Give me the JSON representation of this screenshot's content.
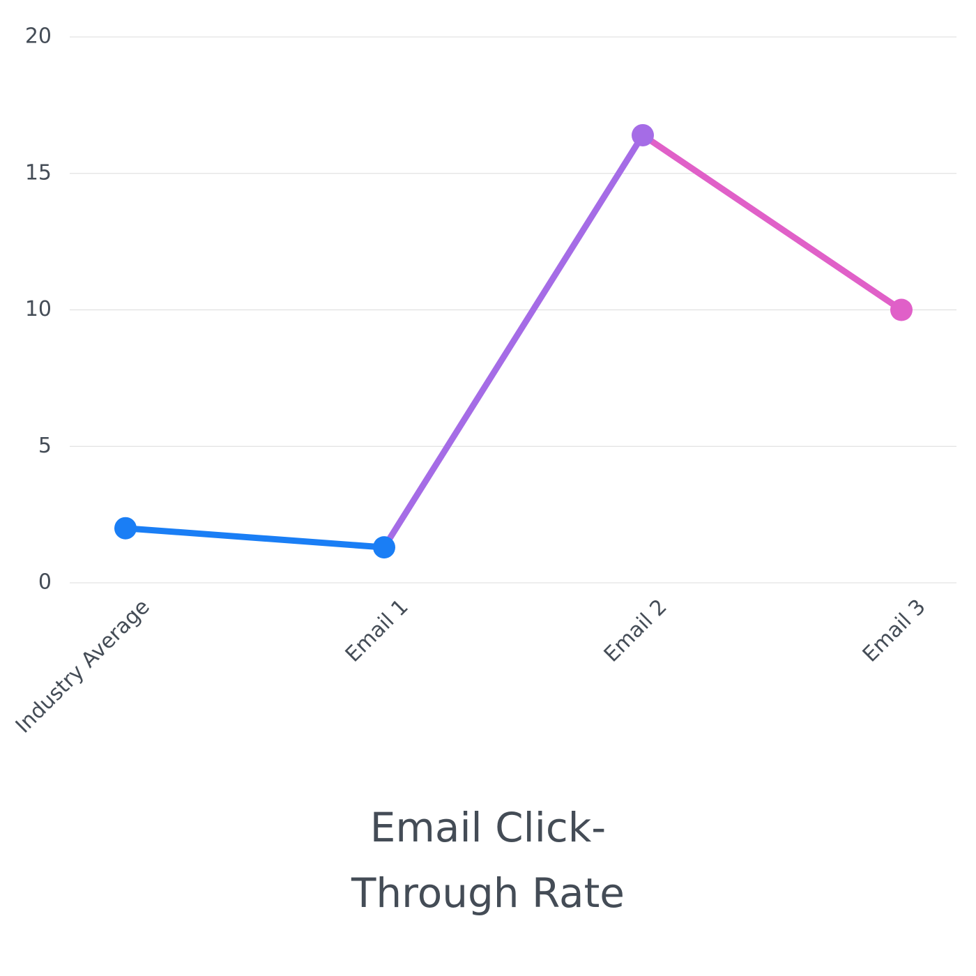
{
  "chart_data": {
    "type": "line",
    "title": "Email Click-Through Rate",
    "categories": [
      "Industry Average",
      "Email 1",
      "Email 2",
      "Email 3"
    ],
    "values": [
      2.0,
      1.3,
      16.4,
      10.0
    ],
    "point_colors": [
      "#1a7ef5",
      "#1a7ef5",
      "#a56ce6",
      "#e060c8"
    ],
    "ylim": [
      0,
      20
    ],
    "yticks": [
      0,
      5,
      10,
      15,
      20
    ],
    "grid": true
  }
}
